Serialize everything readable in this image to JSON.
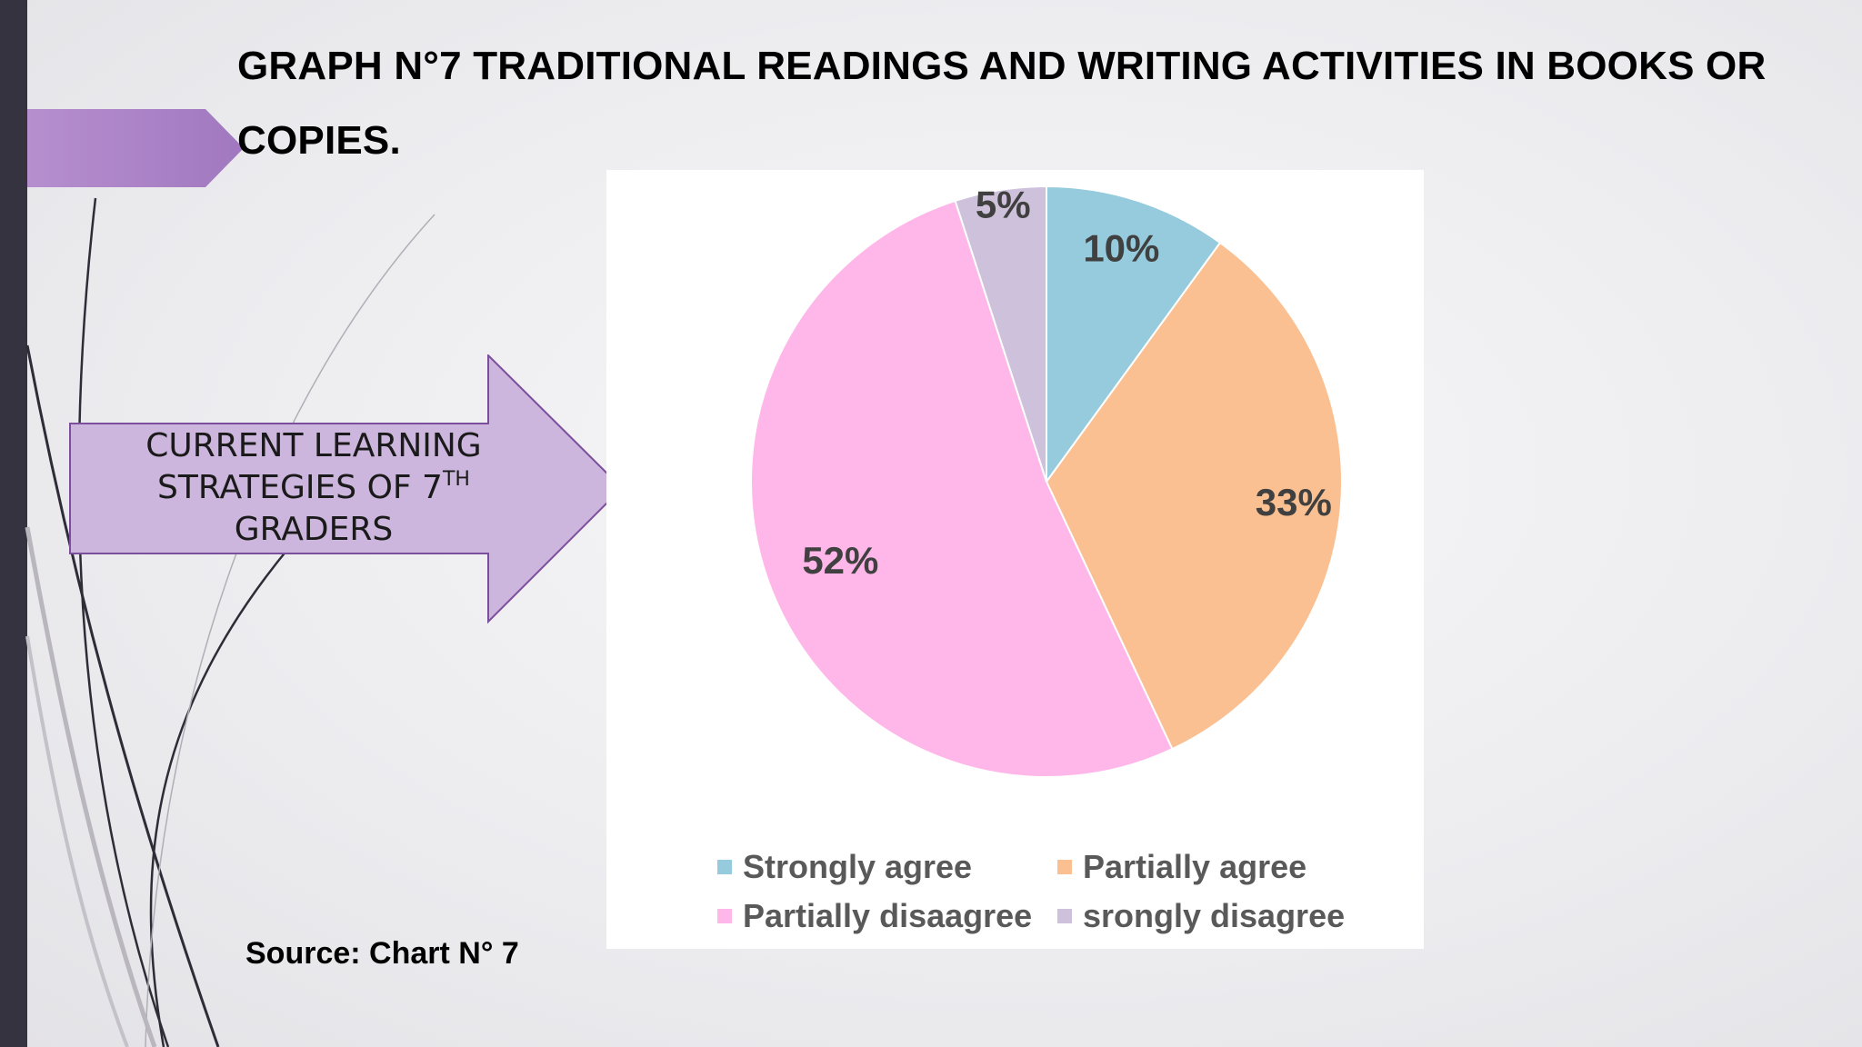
{
  "slide": {
    "title": "GRAPH N°7 TRADITIONAL READINGS AND WRITING ACTIVITIES IN BOOKS OR COPIES.",
    "arrow_label": {
      "line1": "CURRENT LEARNING",
      "line2": "STRATEGIES OF 7",
      "line2_sup": "TH",
      "line3": "GRADERS"
    },
    "source": "Source: Chart N° 7"
  },
  "colors": {
    "sidebar": "#35333f",
    "accent_purple": "#a77fc2",
    "arrow_fill": "#cdb6dd",
    "arrow_stroke": "#7b4f9c"
  },
  "chart_data": {
    "type": "pie",
    "title": "",
    "categories": [
      "Strongly agree",
      "Partially agree",
      "Partially disaagree",
      "srongly disagree"
    ],
    "values": [
      10,
      33,
      52,
      5
    ],
    "labels": [
      "10%",
      "33%",
      "52%",
      "5%"
    ],
    "colors": [
      "#95cbdd",
      "#fac091",
      "#ffb7e9",
      "#cdc1dc"
    ],
    "legend_position": "bottom"
  }
}
